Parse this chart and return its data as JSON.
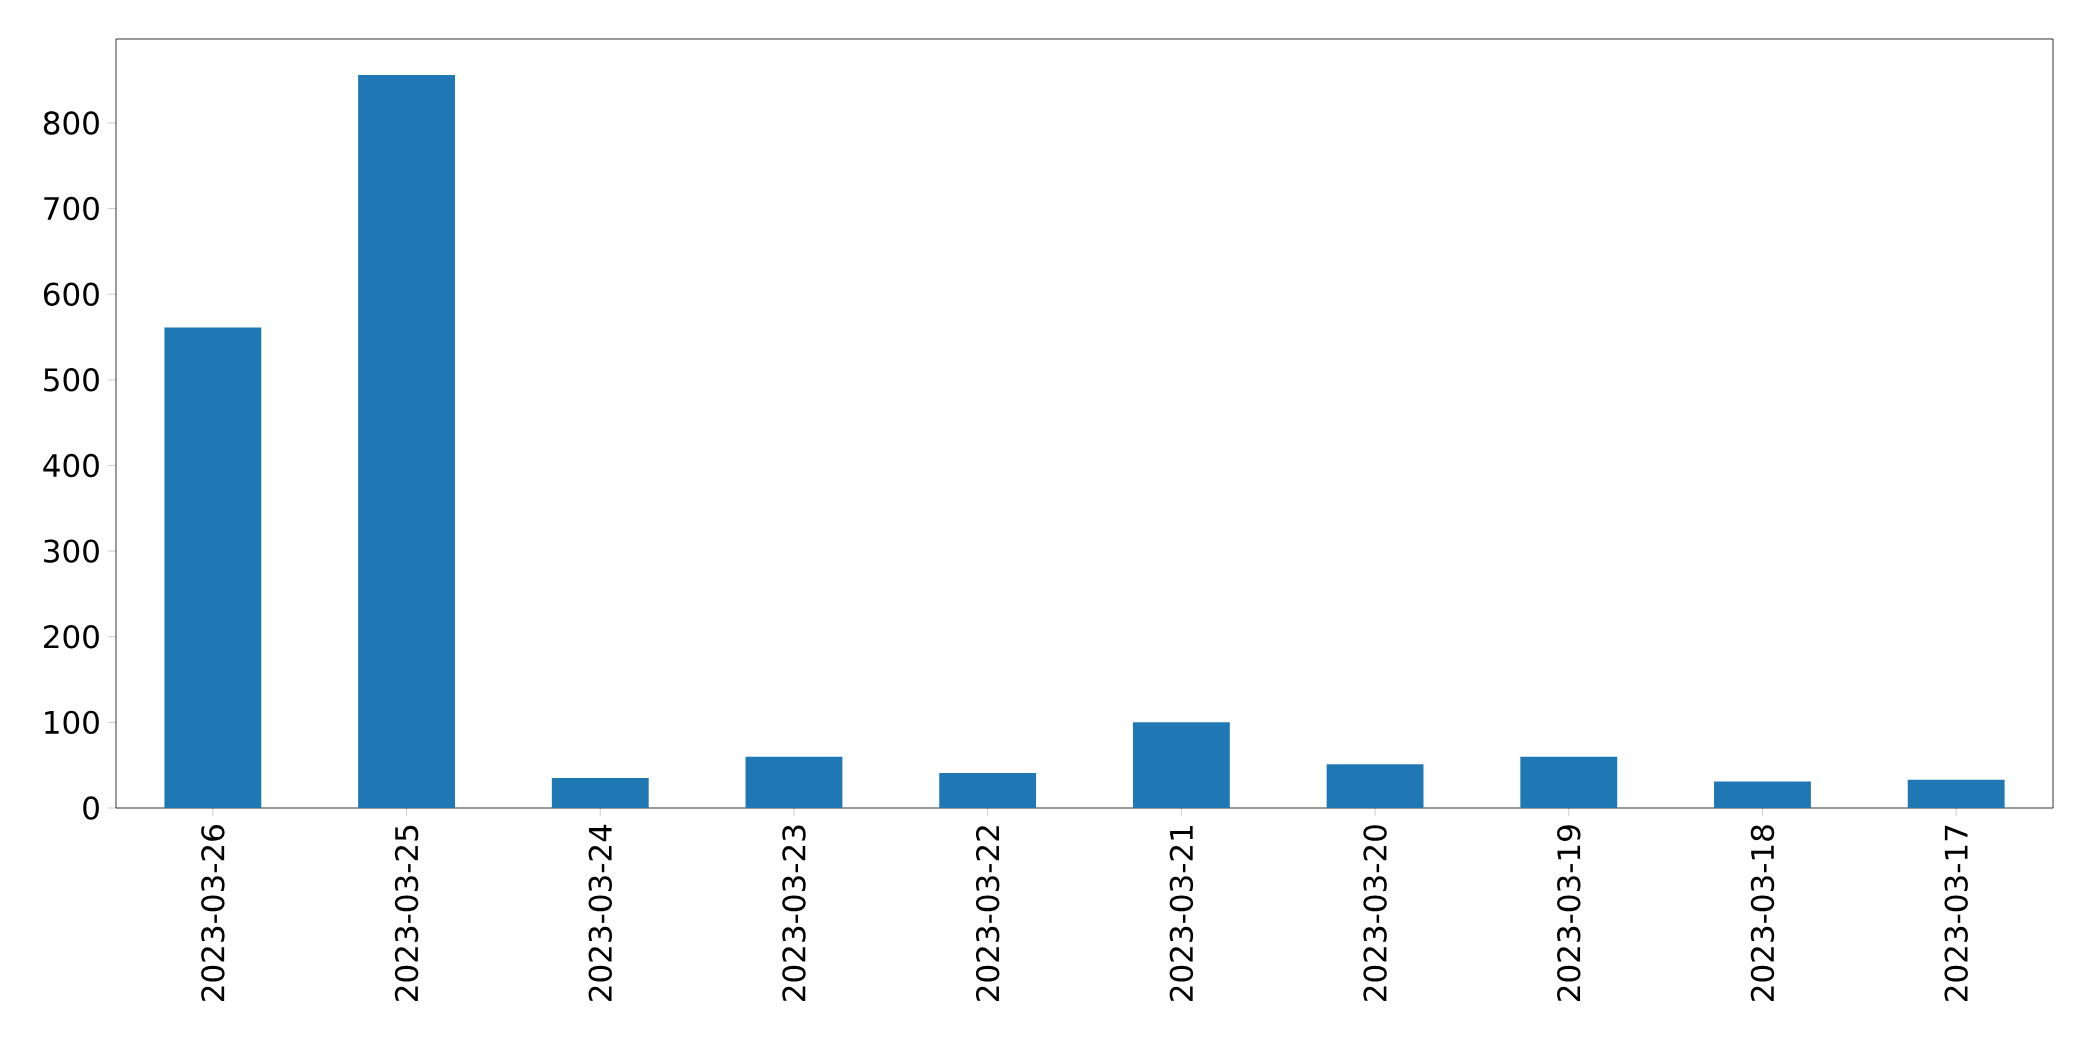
{
  "chart_data": {
    "type": "bar",
    "categories": [
      "2023-03-26",
      "2023-03-25",
      "2023-03-24",
      "2023-03-23",
      "2023-03-22",
      "2023-03-21",
      "2023-03-20",
      "2023-03-19",
      "2023-03-18",
      "2023-03-17"
    ],
    "values": [
      561,
      856,
      35,
      60,
      41,
      100,
      51,
      60,
      31,
      33
    ],
    "color": "#1f77b4",
    "ylim": [
      0,
      898
    ],
    "yticks": [
      0,
      100,
      200,
      300,
      400,
      500,
      600,
      700,
      800
    ],
    "grid": false
  }
}
